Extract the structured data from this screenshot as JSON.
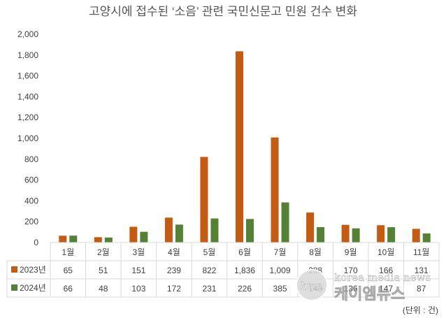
{
  "chart_data": {
    "type": "bar",
    "title": "고양시에 접수된 ‘소음’ 관련 국민신문고 민원 건수 변화",
    "categories": [
      "1월",
      "2월",
      "3월",
      "4월",
      "5월",
      "6월",
      "7월",
      "8월",
      "9월",
      "10월",
      "11월"
    ],
    "series": [
      {
        "name": "2023년",
        "color": "#C55A11",
        "values": [
          65,
          51,
          151,
          239,
          822,
          1836,
          1009,
          288,
          170,
          166,
          131
        ],
        "labels": [
          "65",
          "51",
          "151",
          "239",
          "822",
          "1,836",
          "1,009",
          "288",
          "170",
          "166",
          "131"
        ]
      },
      {
        "name": "2024년",
        "color": "#548235",
        "values": [
          66,
          48,
          103,
          172,
          231,
          226,
          385,
          148,
          136,
          147,
          87
        ],
        "labels": [
          "66",
          "48",
          "103",
          "172",
          "231",
          "226",
          "385",
          "148",
          "136",
          "147",
          "87"
        ]
      }
    ],
    "ylim": [
      0,
      2000
    ],
    "yticks": [
      0,
      200,
      400,
      600,
      800,
      1000,
      1200,
      1400,
      1600,
      1800,
      2000
    ],
    "ytick_labels": [
      "0",
      "200",
      "400",
      "600",
      "800",
      "1,000",
      "1,200",
      "1,400",
      "1,600",
      "1,800",
      "2,000"
    ],
    "grid": false,
    "legend": "data-table-left",
    "unit_note": "(단위 : 건)"
  },
  "watermark": {
    "logo": "kmn",
    "tagline": "korea media news",
    "name": "케이엠뉴스"
  }
}
